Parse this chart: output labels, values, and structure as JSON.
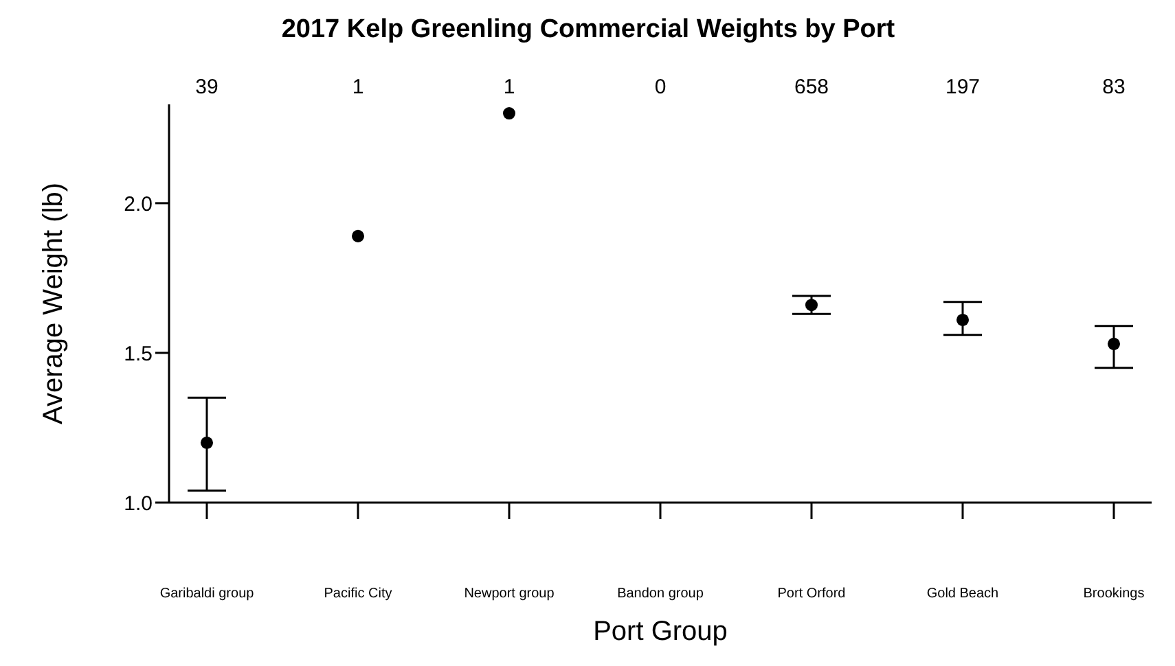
{
  "chart_data": {
    "type": "scatter",
    "title": "2017 Kelp Greenling Commercial Weights by Port",
    "xlabel": "Port Group",
    "ylabel": "Average Weight (lb)",
    "categories": [
      "Garibaldi group",
      "Pacific City",
      "Newport group",
      "Bandon group",
      "Port Orford",
      "Gold Beach",
      "Brookings"
    ],
    "series": [
      {
        "color": "#000000",
        "values": [
          1.2,
          1.89,
          2.3,
          null,
          1.66,
          1.61,
          1.53
        ],
        "errors": [
          [
            1.04,
            1.35
          ],
          null,
          null,
          null,
          [
            1.63,
            1.69
          ],
          [
            1.56,
            1.67
          ],
          [
            1.45,
            1.59
          ]
        ]
      }
    ],
    "ylim": [
      1.0,
      2.33
    ],
    "yticks": [
      {
        "value": 1.0,
        "label": "1.0"
      },
      {
        "value": 1.5,
        "label": "1.5"
      },
      {
        "value": 2.0,
        "label": "2.0"
      }
    ],
    "annotations": [
      "39",
      "1",
      "1",
      "0",
      "658",
      "197",
      "83"
    ],
    "marker": "circle",
    "grid": false,
    "legend": false
  }
}
